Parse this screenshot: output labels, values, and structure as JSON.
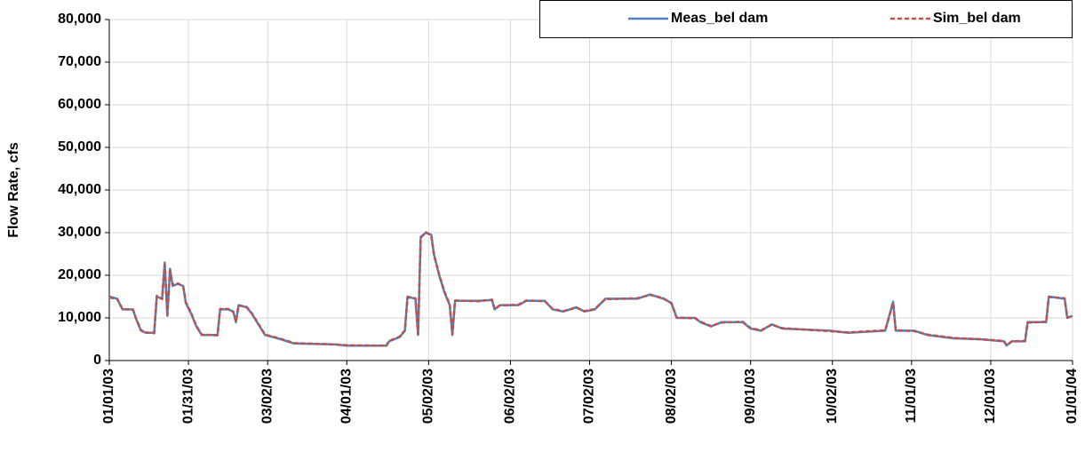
{
  "chart_data": {
    "type": "line",
    "y_label": "Flow Rate, cfs",
    "legend": "top-right",
    "grid": true,
    "x": [
      "01/01/03",
      "01/04/03",
      "01/06/03",
      "01/10/03",
      "01/11/03",
      "01/13/03",
      "01/15/03",
      "01/18/03",
      "01/19/03",
      "01/21/03",
      "01/22/03",
      "01/23/03",
      "01/24/03",
      "01/25/03",
      "01/27/03",
      "01/29/03",
      "01/30/03",
      "02/01/03",
      "02/03/03",
      "02/05/03",
      "02/11/03",
      "02/12/03",
      "02/15/03",
      "02/17/03",
      "02/18/03",
      "02/19/03",
      "02/22/03",
      "02/24/03",
      "02/26/03",
      "03/01/03",
      "03/07/03",
      "03/12/03",
      "03/27/03",
      "04/01/03",
      "04/16/03",
      "04/17/03",
      "04/21/03",
      "04/23/03",
      "04/24/03",
      "04/27/03",
      "04/28/03",
      "04/29/03",
      "05/01/03",
      "05/03/03",
      "05/04/03",
      "05/06/03",
      "05/08/03",
      "05/10/03",
      "05/11/03",
      "05/12/03",
      "05/21/03",
      "05/26/03",
      "05/27/03",
      "05/29/03",
      "06/05/03",
      "06/08/03",
      "06/15/03",
      "06/18/03",
      "06/22/03",
      "06/27/03",
      "06/30/03",
      "07/04/03",
      "07/08/03",
      "07/20/03",
      "07/25/03",
      "07/30/03",
      "08/02/03",
      "08/04/03",
      "08/11/03",
      "08/13/03",
      "08/17/03",
      "08/21/03",
      "08/29/03",
      "09/01/03",
      "09/05/03",
      "09/09/03",
      "09/13/03",
      "10/01/03",
      "10/08/03",
      "10/22/03",
      "10/25/03",
      "10/26/03",
      "11/02/03",
      "11/07/03",
      "11/17/03",
      "11/27/03",
      "12/06/03",
      "12/07/03",
      "12/09/03",
      "12/14/03",
      "12/15/03",
      "12/22/03",
      "12/23/03",
      "12/29/03",
      "12/30/03",
      "01/01/04"
    ],
    "series": [
      {
        "name": "Meas_bel dam",
        "color": "#4f81bd",
        "dash": false,
        "values": [
          15000,
          14500,
          12000,
          12000,
          10000,
          7000,
          6500,
          6500,
          15000,
          14500,
          23000,
          10500,
          21500,
          17500,
          18000,
          17500,
          13500,
          11000,
          8000,
          6000,
          6000,
          12000,
          12000,
          11500,
          9000,
          13000,
          12500,
          11000,
          9000,
          6000,
          5000,
          4000,
          3800,
          3500,
          3500,
          4500,
          5500,
          7000,
          15000,
          14500,
          6000,
          29000,
          30000,
          29500,
          25000,
          20000,
          16000,
          13000,
          6000,
          14000,
          14000,
          14200,
          12000,
          13000,
          13000,
          14000,
          14000,
          12000,
          11500,
          12500,
          11500,
          12000,
          14500,
          14500,
          15500,
          14500,
          13500,
          10000,
          10000,
          9000,
          8000,
          9000,
          9000,
          7500,
          7000,
          8500,
          7500,
          7000,
          6500,
          7000,
          13800,
          7000,
          7000,
          6000,
          5200,
          5000,
          4500,
          3500,
          4500,
          4500,
          9000,
          9000,
          15000,
          14500,
          10000,
          10500
        ]
      },
      {
        "name": "Sim_bel dam",
        "color": "#c0504d",
        "dash": true,
        "values": [
          14800,
          14400,
          12100,
          11900,
          10100,
          7100,
          6600,
          6400,
          15200,
          14400,
          22500,
          10800,
          21000,
          17800,
          18100,
          17300,
          13600,
          11200,
          8100,
          6100,
          5900,
          12100,
          12100,
          11400,
          9100,
          12900,
          12600,
          11100,
          9100,
          6100,
          5100,
          4100,
          3800,
          3600,
          3500,
          4600,
          5600,
          7100,
          14800,
          14600,
          6200,
          28800,
          30100,
          29300,
          24800,
          20200,
          16100,
          13200,
          6100,
          14100,
          13900,
          14300,
          12100,
          12900,
          13100,
          14100,
          13900,
          12100,
          11600,
          12400,
          11600,
          12100,
          14400,
          14600,
          15400,
          14600,
          13400,
          10100,
          9900,
          9100,
          8100,
          8900,
          9100,
          7600,
          7100,
          8400,
          7600,
          6900,
          6600,
          7100,
          13500,
          7100,
          6900,
          6100,
          5300,
          5000,
          4600,
          3600,
          4500,
          4600,
          8900,
          9100,
          14900,
          14600,
          10100,
          10400
        ]
      }
    ],
    "xlim": [
      "01/01/03",
      "01/01/04"
    ],
    "xticks": [
      "01/01/03",
      "01/31/03",
      "03/02/03",
      "04/01/03",
      "05/02/03",
      "06/02/03",
      "07/02/03",
      "08/02/03",
      "09/01/03",
      "10/02/03",
      "11/01/03",
      "12/01/03",
      "01/01/04"
    ],
    "ylim": [
      0,
      80000
    ],
    "yticks": [
      0,
      {
        "value": 10000,
        "label": "10,000"
      },
      {
        "value": 20000,
        "label": "20,000"
      },
      {
        "value": 30000,
        "label": "30,000"
      },
      {
        "value": 40000,
        "label": "40,000"
      },
      {
        "value": 50000,
        "label": "50,000"
      },
      {
        "value": 60000,
        "label": "60,000"
      },
      {
        "value": 70000,
        "label": "70,000"
      },
      {
        "value": 80000,
        "label": "80,000"
      }
    ]
  }
}
